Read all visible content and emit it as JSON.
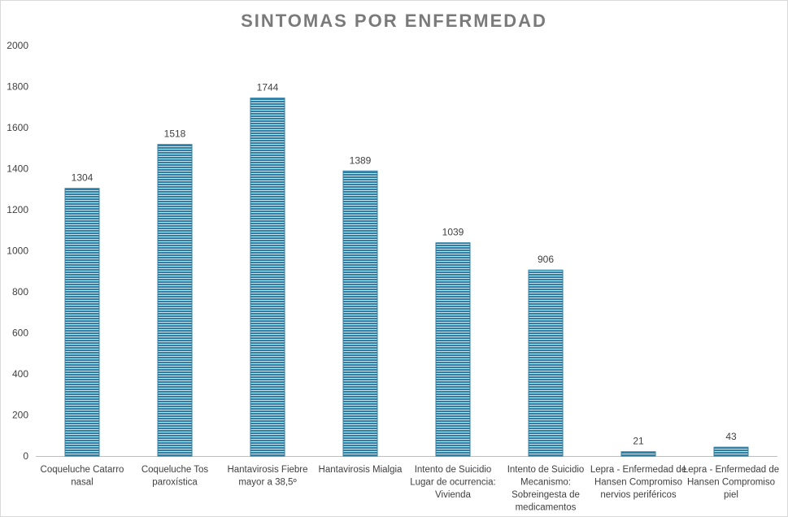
{
  "chart_data": {
    "type": "bar",
    "title": "SINTOMAS POR ENFERMEDAD",
    "xlabel": "",
    "ylabel": "",
    "ylim": [
      0,
      2000
    ],
    "yticks": [
      0,
      200,
      400,
      600,
      800,
      1000,
      1200,
      1400,
      1600,
      1800,
      2000
    ],
    "grid": false,
    "legend": "none",
    "categories": [
      [
        "Coqueluche Catarro",
        "nasal"
      ],
      [
        "Coqueluche Tos",
        "paroxística"
      ],
      [
        "Hantavirosis Fiebre",
        "mayor a 38,5º"
      ],
      [
        "Hantavirosis Mialgia"
      ],
      [
        "Intento de Suicidio",
        "Lugar de ocurrencia:",
        "Vivienda"
      ],
      [
        "Intento de Suicidio",
        "Mecanismo:",
        "Sobreingesta de",
        "medicamentos"
      ],
      [
        "Lepra - Enfermedad de",
        "Hansen Compromiso",
        "nervios periféricos"
      ],
      [
        "Lepra - Enfermedad de",
        "Hansen Compromiso",
        "piel"
      ]
    ],
    "values": [
      1304,
      1518,
      1744,
      1389,
      1039,
      906,
      21,
      43
    ],
    "colors": {
      "bar_fill": "#2e7fa6",
      "bar_stripe": "#c9e2ee",
      "axis": "#bfbfbf",
      "text": "#404040",
      "title": "#7a7a7a"
    }
  }
}
